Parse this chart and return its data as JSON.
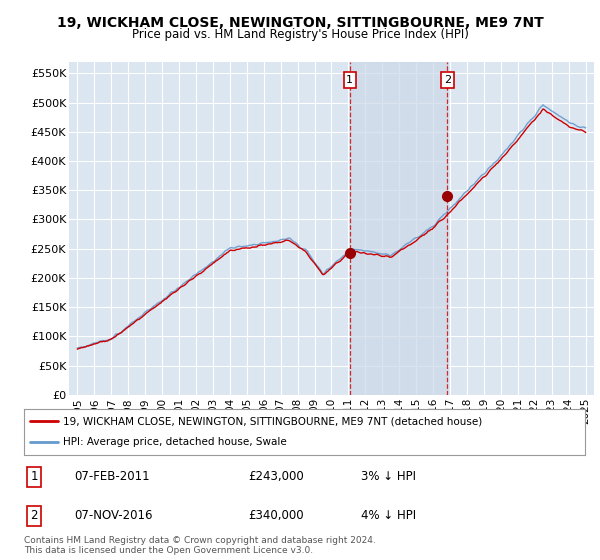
{
  "title": "19, WICKHAM CLOSE, NEWINGTON, SITTINGBOURNE, ME9 7NT",
  "subtitle": "Price paid vs. HM Land Registry's House Price Index (HPI)",
  "background_color": "#ffffff",
  "plot_bg_color": "#dce6f1",
  "grid_color": "#ffffff",
  "red_line_color": "#cc0000",
  "blue_line_color": "#6699cc",
  "vline_color": "#cc0000",
  "span_color": "#ccd9e8",
  "sale1_date_x": 2011.08,
  "sale1_price": 243000,
  "sale1_label": "07-FEB-2011",
  "sale1_pct": "3% ↓ HPI",
  "sale2_date_x": 2016.84,
  "sale2_price": 340000,
  "sale2_label": "07-NOV-2016",
  "sale2_pct": "4% ↓ HPI",
  "xlim_left": 1994.5,
  "xlim_right": 2025.5,
  "ylim_bottom": 0,
  "ylim_top": 570000,
  "yticks": [
    0,
    50000,
    100000,
    150000,
    200000,
    250000,
    300000,
    350000,
    400000,
    450000,
    500000,
    550000
  ],
  "ytick_labels": [
    "£0",
    "£50K",
    "£100K",
    "£150K",
    "£200K",
    "£250K",
    "£300K",
    "£350K",
    "£400K",
    "£450K",
    "£500K",
    "£550K"
  ],
  "xticks": [
    1995,
    1996,
    1997,
    1998,
    1999,
    2000,
    2001,
    2002,
    2003,
    2004,
    2005,
    2006,
    2007,
    2008,
    2009,
    2010,
    2011,
    2012,
    2013,
    2014,
    2015,
    2016,
    2017,
    2018,
    2019,
    2020,
    2021,
    2022,
    2023,
    2024,
    2025
  ],
  "legend_red_label": "19, WICKHAM CLOSE, NEWINGTON, SITTINGBOURNE, ME9 7NT (detached house)",
  "legend_blue_label": "HPI: Average price, detached house, Swale",
  "footer_text": "Contains HM Land Registry data © Crown copyright and database right 2024.\nThis data is licensed under the Open Government Licence v3.0."
}
